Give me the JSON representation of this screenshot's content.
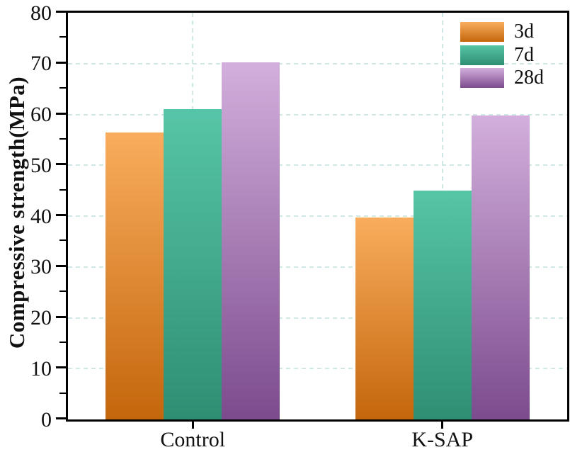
{
  "chart_data": {
    "type": "bar",
    "title": "",
    "xlabel": "",
    "ylabel": "Compressive strength(MPa)",
    "categories": [
      "Control",
      "K-SAP"
    ],
    "series": [
      {
        "name": "3d",
        "values": [
          56.5,
          39.7
        ],
        "color_top": "#F9AD5D",
        "color_bottom": "#C4660C"
      },
      {
        "name": "7d",
        "values": [
          61.0,
          45.0
        ],
        "color_top": "#57C5A7",
        "color_bottom": "#2E8E73"
      },
      {
        "name": "28d",
        "values": [
          70.2,
          59.8
        ],
        "color_top": "#D2AFDC",
        "#comment": "",
        "color_bottom": "#7C4B8D"
      }
    ],
    "ylim": [
      0,
      80
    ],
    "ytick_step": 10,
    "y_minor_tick_step": 5,
    "grid": true,
    "grid_color": "#cfe8e6",
    "frame_color": "#000000",
    "text_color": "#111111",
    "legend_position": "top-right",
    "legend_labels": [
      "3d",
      "7d",
      "28d"
    ]
  }
}
